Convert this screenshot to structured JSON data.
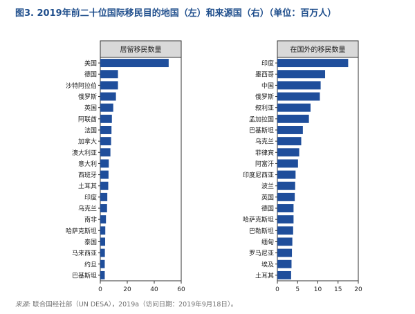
{
  "title": "图3. 2019年前二十位国际移民目的地国（左）和来源国（右）（单位：百万人）",
  "source": {
    "label": "来源:",
    "text": "联合国经社部（UN DESA），2019a（访问日期：2019年9月18日）。"
  },
  "colors": {
    "bar": "#1f4e9b",
    "header_bg": "#d9d9d9",
    "axis": "#333333"
  },
  "chart_data": [
    {
      "type": "bar",
      "orientation": "horizontal",
      "title": "居留移民数量",
      "categories": [
        "美国",
        "德国",
        "沙特阿拉伯",
        "俄罗斯",
        "英国",
        "阿联酋",
        "法国",
        "加拿大",
        "澳大利亚",
        "意大利",
        "西班牙",
        "土耳其",
        "印度",
        "乌克兰",
        "南非",
        "哈萨克斯坦",
        "泰国",
        "马来西亚",
        "约旦",
        "巴基斯坦"
      ],
      "values": [
        50.7,
        13.1,
        13.1,
        11.6,
        9.6,
        8.6,
        8.3,
        8.0,
        7.5,
        6.3,
        6.1,
        5.9,
        5.2,
        5.0,
        4.2,
        3.7,
        3.6,
        3.4,
        3.3,
        3.3
      ],
      "xlim": [
        0,
        60
      ],
      "xticks": [
        0,
        20,
        40,
        60
      ]
    },
    {
      "type": "bar",
      "orientation": "horizontal",
      "title": "在国外的移民数量",
      "categories": [
        "印度",
        "墨西哥",
        "中国",
        "俄罗斯",
        "叙利亚",
        "孟加拉国",
        "巴基斯坦",
        "乌克兰",
        "菲律宾",
        "阿富汗",
        "印度尼西亚",
        "波兰",
        "英国",
        "德国",
        "哈萨克斯坦",
        "巴勒斯坦",
        "缅甸",
        "罗马尼亚",
        "埃及",
        "土耳其"
      ],
      "values": [
        17.5,
        11.8,
        10.7,
        10.5,
        8.2,
        7.8,
        6.3,
        5.9,
        5.4,
        5.1,
        4.5,
        4.4,
        4.3,
        4.0,
        4.0,
        3.9,
        3.7,
        3.6,
        3.5,
        3.4
      ],
      "xlim": [
        0,
        20
      ],
      "xticks": [
        0,
        5,
        10,
        15,
        20
      ]
    }
  ]
}
